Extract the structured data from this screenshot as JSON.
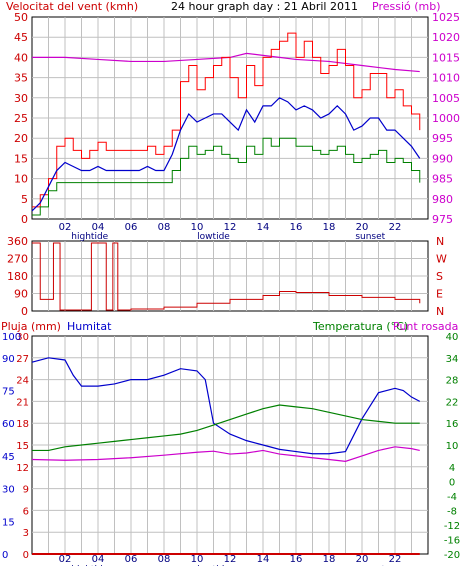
{
  "header": {
    "left_label": "Velocitat del vent (kmh)",
    "title": "24 hour graph day : 21 Abril 2011",
    "right_label": "Pressió (mb)",
    "rain_label": "Pluja (mm)",
    "humidity_label": "Humitat",
    "temperature_label": "Temperatura (°C)",
    "dewpoint_label": "Punt rosada"
  },
  "colors": {
    "wind": "#ff0000",
    "gust": "#ff0000",
    "avg_wind": "#0000cc",
    "wind_low": "#008000",
    "pressure": "#cc00cc",
    "direction": "#cc0000",
    "humidity": "#0000cc",
    "temperature": "#008000",
    "dewpoint": "#cc00cc",
    "rain": "#cc0000",
    "label_red": "#cc0000",
    "label_blue": "#0000cc",
    "label_green": "#008000",
    "label_magenta": "#cc00cc",
    "grid": "#c0c0c0"
  },
  "chart_data": [
    {
      "type": "line",
      "name": "wind-pressure",
      "x_ticks": [
        "02",
        "04",
        "06",
        "08",
        "10",
        "12",
        "14",
        "16",
        "18",
        "20",
        "22"
      ],
      "x_events": [
        {
          "label": "hightide",
          "hour": 3.5
        },
        {
          "label": "lowtide",
          "hour": 11.0
        },
        {
          "label": "sunset",
          "hour": 20.5
        }
      ],
      "wind_axis": {
        "ticks": [
          0,
          5,
          10,
          15,
          20,
          25,
          30,
          35,
          40,
          45,
          50
        ],
        "ylim": [
          0,
          50
        ]
      },
      "pressure_axis": {
        "ticks": [
          975,
          980,
          985,
          990,
          995,
          1000,
          1005,
          1010,
          1015,
          1020,
          1025
        ],
        "ylim": [
          975,
          1025
        ]
      },
      "gust": {
        "x": [
          0,
          0.5,
          1,
          1.5,
          2,
          2.5,
          3,
          3.5,
          4,
          4.5,
          5,
          5.5,
          6,
          6.5,
          7,
          7.5,
          8,
          8.5,
          9,
          9.5,
          10,
          10.5,
          11,
          11.5,
          12,
          12.5,
          13,
          13.5,
          14,
          14.5,
          15,
          15.5,
          16,
          16.5,
          17,
          17.5,
          18,
          18.5,
          19,
          19.5,
          20,
          20.5,
          21,
          21.5,
          22,
          22.5,
          23,
          23.5
        ],
        "y": [
          3,
          6,
          10,
          18,
          20,
          17,
          15,
          17,
          19,
          17,
          17,
          17,
          17,
          17,
          18,
          16,
          18,
          22,
          34,
          38,
          32,
          35,
          38,
          40,
          35,
          30,
          38,
          33,
          40,
          42,
          44,
          46,
          40,
          44,
          40,
          36,
          38,
          42,
          38,
          30,
          32,
          36,
          36,
          30,
          32,
          28,
          26,
          22
        ]
      },
      "avg_wind": {
        "x": [
          0,
          0.5,
          1,
          1.5,
          2,
          2.5,
          3,
          3.5,
          4,
          4.5,
          5,
          5.5,
          6,
          6.5,
          7,
          7.5,
          8,
          8.5,
          9,
          9.5,
          10,
          10.5,
          11,
          11.5,
          12,
          12.5,
          13,
          13.5,
          14,
          14.5,
          15,
          15.5,
          16,
          16.5,
          17,
          17.5,
          18,
          18.5,
          19,
          19.5,
          20,
          20.5,
          21,
          21.5,
          22,
          22.5,
          23,
          23.5
        ],
        "y": [
          2,
          4,
          8,
          12,
          14,
          13,
          12,
          12,
          13,
          12,
          12,
          12,
          12,
          12,
          13,
          12,
          12,
          16,
          22,
          26,
          24,
          25,
          26,
          26,
          24,
          22,
          27,
          24,
          28,
          28,
          30,
          29,
          27,
          28,
          27,
          25,
          26,
          28,
          26,
          22,
          23,
          25,
          25,
          22,
          22,
          20,
          18,
          15
        ]
      },
      "low_wind": {
        "x": [
          0,
          0.5,
          1,
          1.5,
          2,
          2.5,
          3,
          3.5,
          4,
          4.5,
          5,
          5.5,
          6,
          6.5,
          7,
          7.5,
          8,
          8.5,
          9,
          9.5,
          10,
          10.5,
          11,
          11.5,
          12,
          12.5,
          13,
          13.5,
          14,
          14.5,
          15,
          15.5,
          16,
          16.5,
          17,
          17.5,
          18,
          18.5,
          19,
          19.5,
          20,
          20.5,
          21,
          21.5,
          22,
          22.5,
          23,
          23.5
        ],
        "y": [
          1,
          3,
          7,
          9,
          9,
          9,
          9,
          9,
          9,
          9,
          9,
          9,
          9,
          9,
          9,
          9,
          9,
          12,
          15,
          18,
          16,
          17,
          18,
          16,
          15,
          14,
          18,
          16,
          20,
          18,
          20,
          20,
          18,
          18,
          17,
          16,
          17,
          18,
          16,
          14,
          15,
          16,
          17,
          14,
          15,
          14,
          12,
          9
        ]
      },
      "pressure": {
        "x": [
          0,
          2,
          4,
          6,
          8,
          10,
          12,
          13,
          14,
          15,
          16,
          18,
          20,
          22,
          23.5
        ],
        "y": [
          1015,
          1015,
          1014.5,
          1014,
          1014,
          1014.5,
          1015,
          1016,
          1015.5,
          1015,
          1014.5,
          1014,
          1013,
          1012,
          1011.5
        ]
      }
    },
    {
      "type": "line",
      "name": "wind-direction",
      "y_ticks_left": [
        0,
        90,
        180,
        270,
        360
      ],
      "y_ticks_right": [
        "N",
        "E",
        "S",
        "W",
        "N"
      ],
      "ylim": [
        0,
        360
      ],
      "direction": {
        "x": [
          0,
          0.4,
          0.5,
          1.2,
          1.3,
          1.6,
          1.7,
          2.2,
          3.5,
          3.6,
          4.4,
          4.5,
          4.8,
          4.9,
          5.2,
          6,
          8,
          10,
          12,
          14,
          15,
          16,
          18,
          20,
          22,
          23.5
        ],
        "y": [
          350,
          350,
          60,
          60,
          350,
          350,
          5,
          5,
          5,
          350,
          350,
          5,
          5,
          350,
          5,
          10,
          20,
          40,
          60,
          80,
          100,
          95,
          80,
          70,
          60,
          40
        ]
      }
    },
    {
      "type": "line",
      "name": "rain-humidity-temperature",
      "rain_axis": {
        "ticks": [
          0,
          15,
          30,
          45,
          60,
          75,
          90,
          100
        ],
        "ylim": [
          0,
          100
        ]
      },
      "humidity_axis": {
        "ticks": [
          0,
          3,
          6,
          9,
          12,
          15,
          18,
          21,
          24,
          27,
          30
        ],
        "ylim": [
          0,
          30
        ]
      },
      "temperature_axis": {
        "ticks": [
          -20,
          -16,
          -12,
          -8,
          -4,
          0,
          4,
          10,
          16,
          22,
          28,
          34,
          40
        ],
        "ylim": [
          -20,
          40
        ]
      },
      "rain": {
        "x": [
          0,
          23.5
        ],
        "y": [
          0,
          0
        ]
      },
      "humidity": {
        "x": [
          0,
          1,
          2,
          2.5,
          3,
          4,
          5,
          6,
          7,
          8,
          9,
          10,
          10.5,
          11,
          12,
          13,
          14,
          15,
          16,
          17,
          18,
          19,
          20,
          21,
          22,
          22.5,
          23,
          23.5
        ],
        "y": [
          88,
          90,
          89,
          82,
          77,
          77,
          78,
          80,
          80,
          82,
          85,
          84,
          80,
          60,
          55,
          52,
          50,
          48,
          47,
          46,
          46,
          47,
          62,
          74,
          76,
          75,
          72,
          70
        ]
      },
      "temperature": {
        "x": [
          0,
          1,
          2,
          3,
          4,
          5,
          6,
          7,
          8,
          9,
          10,
          11,
          12,
          13,
          14,
          15,
          16,
          17,
          18,
          19,
          20,
          21,
          22,
          23,
          23.5
        ],
        "y": [
          8.5,
          8.5,
          9.5,
          10,
          10.5,
          11,
          11.5,
          12,
          12.5,
          13,
          14,
          15.5,
          17,
          18.5,
          20,
          21,
          20.5,
          20,
          19,
          18,
          17,
          16.5,
          16,
          16,
          16
        ]
      },
      "dewpoint": {
        "x": [
          0,
          2,
          4,
          6,
          8,
          10,
          11,
          12,
          13,
          14,
          15,
          16,
          17,
          18,
          19,
          20,
          21,
          22,
          23,
          23.5
        ],
        "y": [
          6,
          5.8,
          6,
          6.5,
          7.2,
          8,
          8.3,
          7.5,
          7.8,
          8.5,
          7.5,
          7,
          6.5,
          6,
          5.5,
          7,
          8.5,
          9.5,
          9,
          8.5
        ]
      }
    }
  ]
}
